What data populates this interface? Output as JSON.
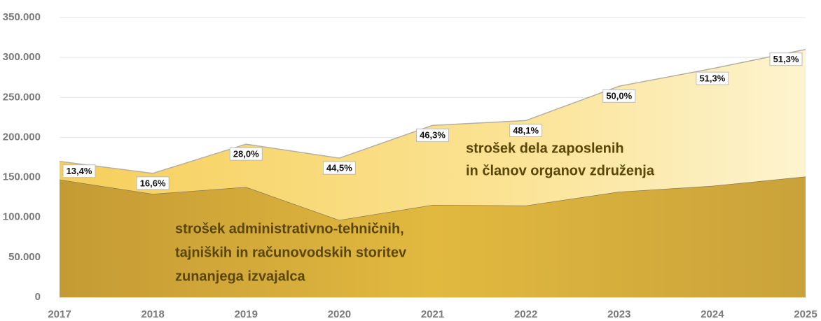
{
  "chart_data": {
    "type": "stacked_area",
    "categories": [
      "2017",
      "2018",
      "2019",
      "2020",
      "2021",
      "2022",
      "2023",
      "2024",
      "2025"
    ],
    "series": [
      {
        "name": [
          "strošek administrativno-tehničnih,",
          "tajniških in računovodskih storitev",
          "zunanjega izvajalca"
        ],
        "color": "#d4ab3c",
        "values": [
          147200,
          129300,
          137900,
          96600,
          115500,
          114700,
          132000,
          139300,
          151000
        ]
      },
      {
        "name": [
          "strošek dela zaposlenih",
          "in članov organov združenja"
        ],
        "color": "#f9dc7c",
        "values": [
          22800,
          25700,
          53600,
          77400,
          99500,
          106300,
          132000,
          146700,
          159000
        ]
      }
    ],
    "annotations": [
      "13,4%",
      "16,6%",
      "28,0%",
      "44,5%",
      "46,3%",
      "48,1%",
      "50,0%",
      "51,3%",
      "51,3%"
    ],
    "ylim": [
      0,
      350000
    ],
    "yticks": [
      0,
      {
        "value": 50000,
        "label": "50.000"
      },
      {
        "value": 100000,
        "label": "100.000"
      },
      {
        "value": 150000,
        "label": "150.000"
      },
      {
        "value": 200000,
        "label": "200.000"
      },
      {
        "value": 250000,
        "label": "250.000"
      },
      {
        "value": 300000,
        "label": "300.000"
      },
      {
        "value": 350000,
        "label": "350.000"
      }
    ],
    "grid": true
  }
}
